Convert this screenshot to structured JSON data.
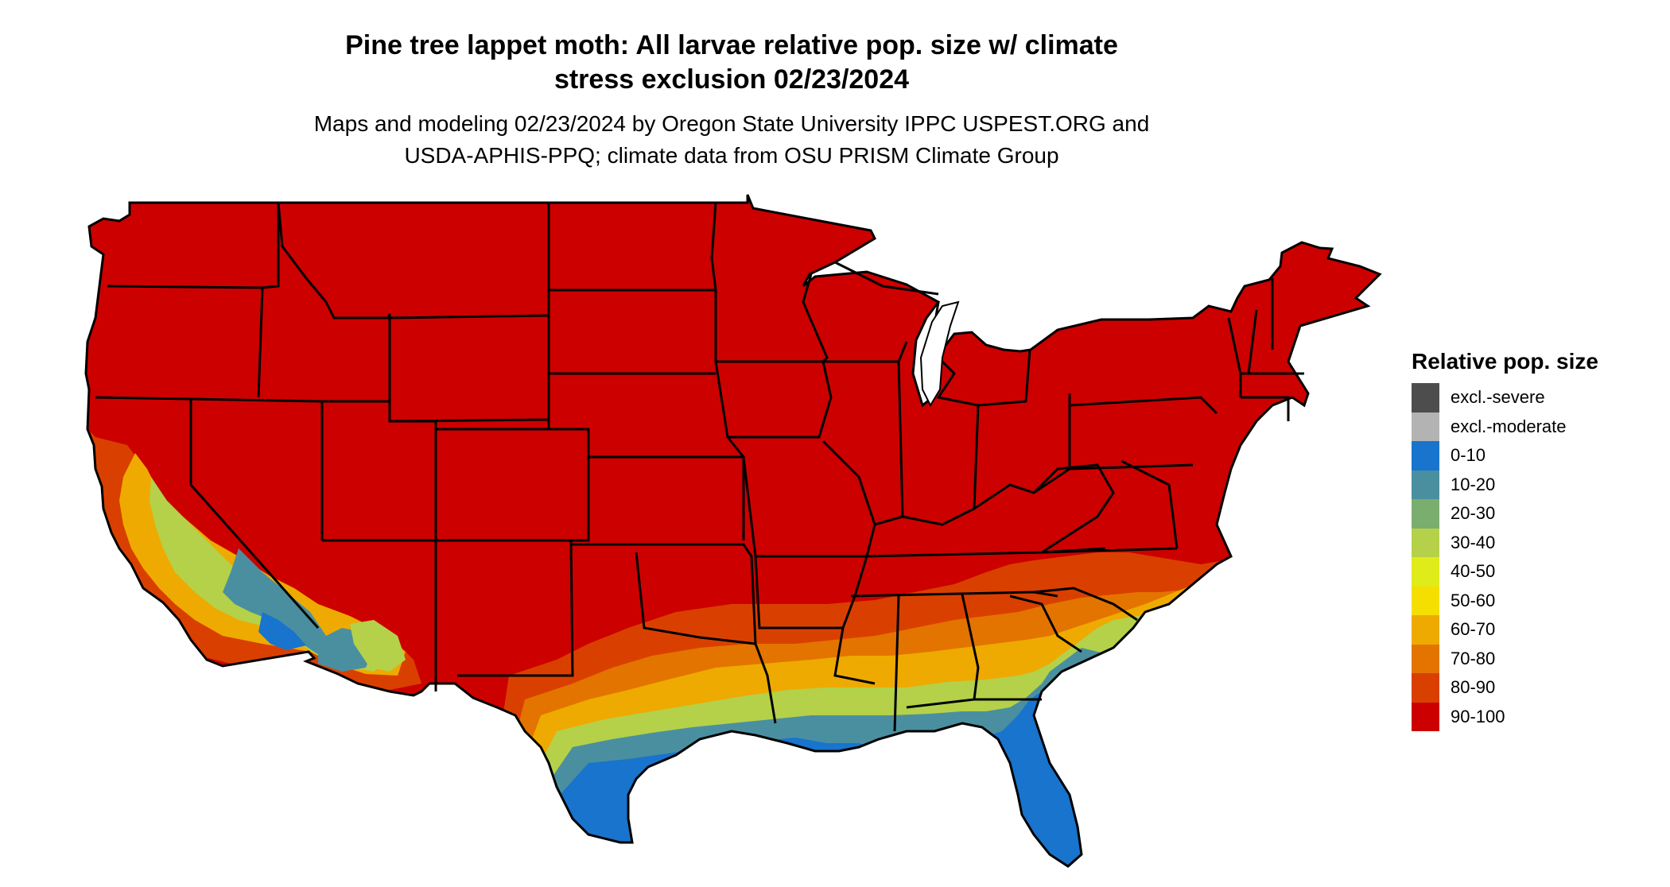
{
  "title": {
    "line1": "Pine tree lappet moth: All larvae relative pop. size w/ climate",
    "line2": "stress exclusion 02/23/2024"
  },
  "subtitle": {
    "line1": "Maps and modeling 02/23/2024 by Oregon State University IPPC USPEST.ORG and",
    "line2": "USDA-APHIS-PPQ; climate data from OSU PRISM Climate Group"
  },
  "legend": {
    "title": "Relative pop. size",
    "items": [
      {
        "label": "excl.-severe",
        "color": "#4d4d4d"
      },
      {
        "label": "excl.-moderate",
        "color": "#b3b3b3"
      },
      {
        "label": "0-10",
        "color": "#1874cd"
      },
      {
        "label": "10-20",
        "color": "#4a8fa0"
      },
      {
        "label": "20-30",
        "color": "#7aae6e"
      },
      {
        "label": "30-40",
        "color": "#b4d149"
      },
      {
        "label": "40-50",
        "color": "#e0eb1a"
      },
      {
        "label": "50-60",
        "color": "#f5df00"
      },
      {
        "label": "60-70",
        "color": "#eeaa00"
      },
      {
        "label": "70-80",
        "color": "#e37400"
      },
      {
        "label": "80-90",
        "color": "#d94000"
      },
      {
        "label": "90-100",
        "color": "#cd0000"
      }
    ]
  },
  "map": {
    "region": "Contiguous United States",
    "dominant_class": "90-100",
    "zones": [
      {
        "area": "southern California coast",
        "classes": [
          "30-40",
          "60-70",
          "80-90"
        ]
      },
      {
        "area": "southwest desert (CA/AZ)",
        "classes": [
          "0-10",
          "10-20",
          "30-40",
          "60-70"
        ]
      },
      {
        "area": "Gulf coast",
        "classes": [
          "0-10",
          "10-20",
          "30-40",
          "60-70",
          "80-90"
        ]
      },
      {
        "area": "Florida peninsula",
        "classes": [
          "0-10"
        ]
      },
      {
        "area": "southern Texas",
        "classes": [
          "0-10"
        ]
      },
      {
        "area": "Carolinas coast",
        "classes": [
          "60-70",
          "80-90"
        ]
      }
    ]
  }
}
